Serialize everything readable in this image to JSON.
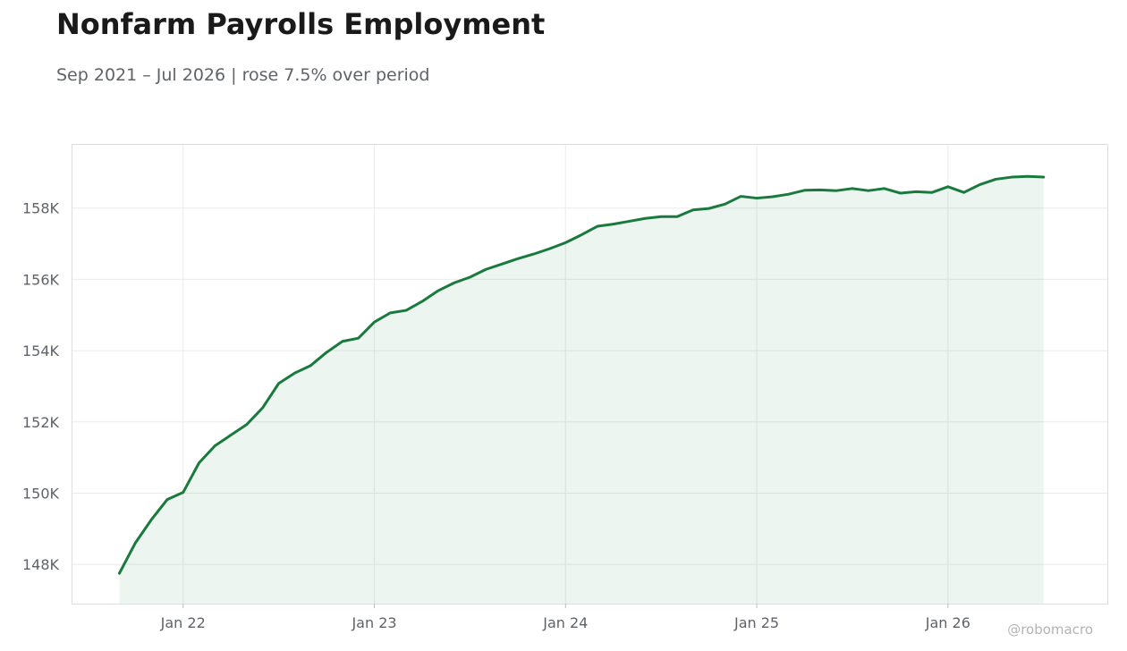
{
  "title": "Nonfarm Payrolls Employment",
  "subtitle": "Sep 2021 – Jul 2026 | rose 7.5% over period",
  "watermark": "@robomacro",
  "colors": {
    "line": "#1a7a3e",
    "fill": "#1a7a3e",
    "grid": "#ebebeb",
    "frame": "#dddddd",
    "tick_text": "#5f6368"
  },
  "chart_data": {
    "type": "area",
    "title": "Nonfarm Payrolls Employment",
    "subtitle": "Sep 2021 – Jul 2026 | rose 7.5% over period",
    "xlabel": "",
    "ylabel": "",
    "grid": true,
    "x_ticks": [
      {
        "date": "2022-01",
        "label": "Jan 22"
      },
      {
        "date": "2023-01",
        "label": "Jan 23"
      },
      {
        "date": "2024-01",
        "label": "Jan 24"
      },
      {
        "date": "2025-01",
        "label": "Jan 25"
      },
      {
        "date": "2026-01",
        "label": "Jan 26"
      }
    ],
    "y_ticks": [
      {
        "value": 148000,
        "label": "148K"
      },
      {
        "value": 150000,
        "label": "150K"
      },
      {
        "value": 152000,
        "label": "152K"
      },
      {
        "value": 154000,
        "label": "154K"
      },
      {
        "value": 156000,
        "label": "156K"
      },
      {
        "value": 158000,
        "label": "158K"
      }
    ],
    "xlim": [
      "2021-06",
      "2026-11"
    ],
    "ylim": [
      146900,
      159800
    ],
    "series": [
      {
        "x": [
          "2021-09",
          "2021-10",
          "2021-11",
          "2021-12",
          "2022-01",
          "2022-02",
          "2022-03",
          "2022-04",
          "2022-05",
          "2022-06",
          "2022-07",
          "2022-08",
          "2022-09",
          "2022-10",
          "2022-11",
          "2022-12",
          "2023-01",
          "2023-02",
          "2023-03",
          "2023-04",
          "2023-05",
          "2023-06",
          "2023-07",
          "2023-08",
          "2023-09",
          "2023-10",
          "2023-11",
          "2023-12",
          "2024-01",
          "2024-02",
          "2024-03",
          "2024-04",
          "2024-05",
          "2024-06",
          "2024-07",
          "2024-08",
          "2024-09",
          "2024-10",
          "2024-11",
          "2024-12",
          "2025-01",
          "2025-02",
          "2025-03",
          "2025-04",
          "2025-05",
          "2025-06",
          "2025-07",
          "2025-08",
          "2025-09",
          "2025-10",
          "2025-11",
          "2025-12",
          "2026-01",
          "2026-02",
          "2026-03",
          "2026-04",
          "2026-05",
          "2026-06",
          "2026-07"
        ],
        "values": [
          147750,
          148600,
          149250,
          149820,
          150020,
          150850,
          151330,
          151630,
          151930,
          152400,
          153080,
          153370,
          153580,
          153950,
          154260,
          154350,
          154800,
          155060,
          155130,
          155380,
          155680,
          155900,
          156060,
          156280,
          156430,
          156580,
          156710,
          156860,
          157030,
          157250,
          157490,
          157550,
          157630,
          157710,
          157760,
          157760,
          157950,
          157990,
          158110,
          158330,
          158280,
          158320,
          158390,
          158500,
          158510,
          158490,
          158550,
          158490,
          158550,
          158420,
          158460,
          158440,
          158600,
          158440,
          158660,
          158810,
          158870,
          158890,
          158870
        ]
      }
    ]
  }
}
